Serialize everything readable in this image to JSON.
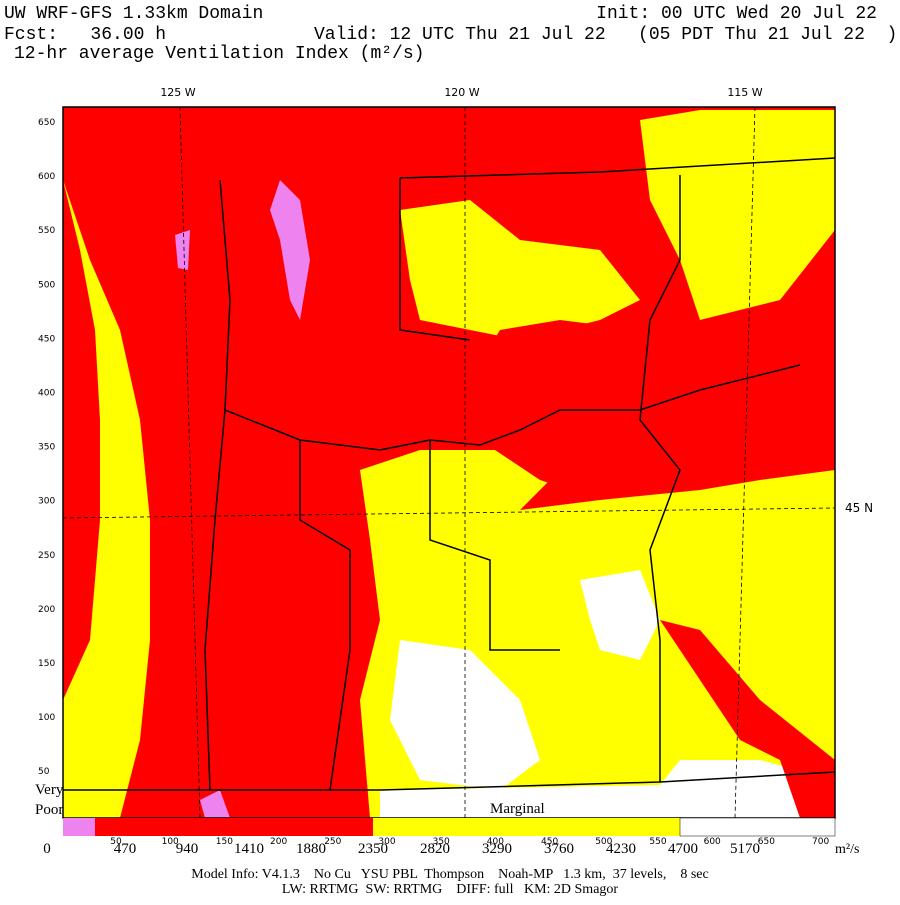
{
  "header": {
    "title": "UW WRF-GFS 1.33km Domain",
    "init": "Init: 00 UTC Wed 20 Jul 22",
    "forecast": "Fcst:   36.00 h",
    "valid": "Valid: 12 UTC Thu 21 Jul 22   (05 PDT Thu 21 Jul 22  )",
    "field": "12-hr average Ventilation Index (m²/s)"
  },
  "map": {
    "longitude_labels": [
      "125 W",
      "120 W",
      "115 W"
    ],
    "latitude_label": "45 N",
    "y_grid_labels": [
      "650",
      "600",
      "550",
      "500",
      "450",
      "400",
      "350",
      "300",
      "250",
      "200",
      "150",
      "100",
      "50"
    ],
    "x_grid_labels": [
      "50",
      "100",
      "150",
      "200",
      "250",
      "300",
      "350",
      "400",
      "450",
      "500",
      "550",
      "600",
      "650",
      "700"
    ],
    "region_labels": [
      "Very",
      "Poor",
      "Marginal"
    ]
  },
  "colorbar": {
    "labels": [
      "0",
      "470",
      "940",
      "1410",
      "1880",
      "2350",
      "2820",
      "3290",
      "3760",
      "4230",
      "4700",
      "5170"
    ],
    "unit": "m²/s"
  },
  "footer": {
    "line1": "Model Info: V4.1.3    No Cu   YSU PBL  Thompson    Noah-MP   1.3 km,  37 levels,    8 sec",
    "line2": "LW: RRTMG  SW: RRTMG    DIFF: full   KM: 2D Smagor"
  }
}
